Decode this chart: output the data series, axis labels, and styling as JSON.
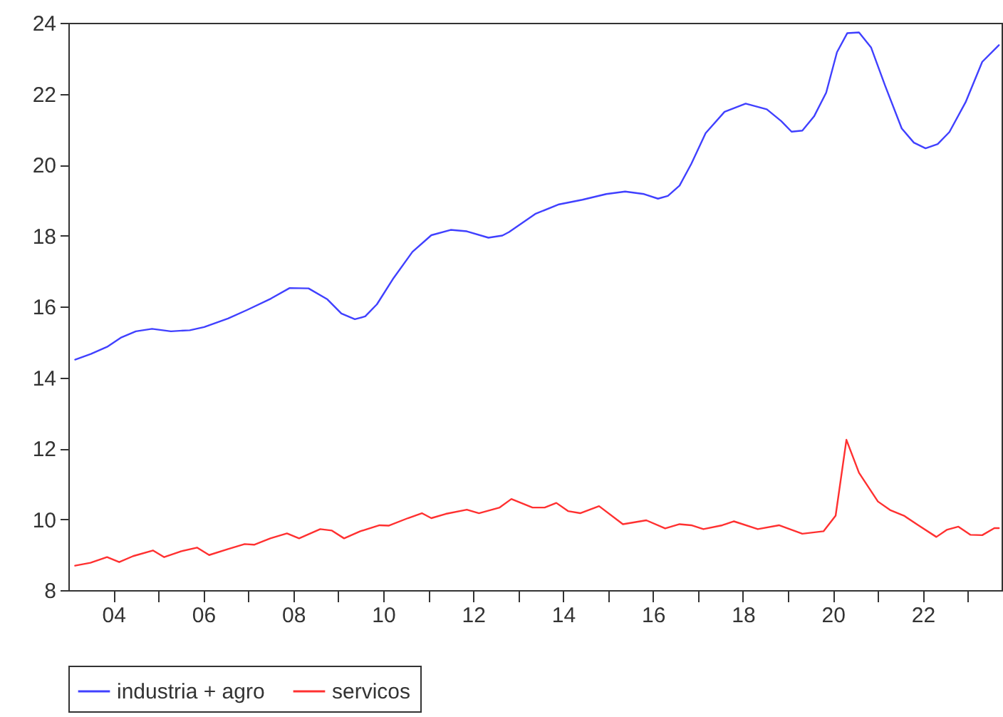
{
  "chart_data": {
    "type": "line",
    "legend": "bottom",
    "marker": "none",
    "line_style": "solid",
    "xlim": [
      2003,
      2023.75
    ],
    "ylim": [
      8,
      24
    ],
    "yticks": [
      8,
      10,
      12,
      14,
      16,
      18,
      20,
      22,
      24
    ],
    "xticks": [
      {
        "value": 2004,
        "label": "04"
      },
      {
        "value": 2005,
        "label": null
      },
      {
        "value": 2006,
        "label": "06"
      },
      {
        "value": 2007,
        "label": null
      },
      {
        "value": 2008,
        "label": "08"
      },
      {
        "value": 2009,
        "label": null
      },
      {
        "value": 2010,
        "label": "10"
      },
      {
        "value": 2011,
        "label": null
      },
      {
        "value": 2012,
        "label": "12"
      },
      {
        "value": 2013,
        "label": null
      },
      {
        "value": 2014,
        "label": "14"
      },
      {
        "value": 2015,
        "label": null
      },
      {
        "value": 2016,
        "label": "16"
      },
      {
        "value": 2017,
        "label": null
      },
      {
        "value": 2018,
        "label": "18"
      },
      {
        "value": 2019,
        "label": null
      },
      {
        "value": 2020,
        "label": "20"
      },
      {
        "value": 2021,
        "label": null
      },
      {
        "value": 2022,
        "label": "22"
      },
      {
        "value": 2023,
        "label": null
      }
    ],
    "series": [
      {
        "name": "industria + agro",
        "color": "#4040ff",
        "x": [
          2003.15,
          2003.5,
          2003.86,
          2004.18,
          2004.5,
          2004.86,
          2005.28,
          2005.7,
          2006.02,
          2006.55,
          2006.97,
          2007.5,
          2007.92,
          2008.34,
          2008.76,
          2009.07,
          2009.37,
          2009.6,
          2009.86,
          2010.23,
          2010.65,
          2011.07,
          2011.5,
          2011.86,
          2012.34,
          2012.65,
          2012.8,
          2013.38,
          2013.91,
          2014.43,
          2014.96,
          2015.38,
          2015.8,
          2016.11,
          2016.33,
          2016.59,
          2016.85,
          2017.17,
          2017.59,
          2018.06,
          2018.53,
          2018.85,
          2019.08,
          2019.32,
          2019.58,
          2019.85,
          2020.09,
          2020.32,
          2020.58,
          2020.85,
          2021.16,
          2021.53,
          2021.8,
          2022.06,
          2022.33,
          2022.59,
          2022.95,
          2023.32,
          2023.69
        ],
        "values": [
          14.5,
          14.66,
          14.86,
          15.13,
          15.3,
          15.37,
          15.3,
          15.33,
          15.42,
          15.66,
          15.9,
          16.22,
          16.52,
          16.51,
          16.2,
          15.8,
          15.64,
          15.72,
          16.06,
          16.8,
          17.54,
          18.01,
          18.16,
          18.12,
          17.94,
          18.0,
          18.1,
          18.61,
          18.88,
          19.01,
          19.17,
          19.24,
          19.17,
          19.04,
          19.12,
          19.41,
          20.02,
          20.89,
          21.49,
          21.72,
          21.56,
          21.23,
          20.93,
          20.96,
          21.36,
          22.03,
          23.17,
          23.71,
          23.73,
          23.3,
          22.23,
          21.02,
          20.62,
          20.46,
          20.58,
          20.92,
          21.76,
          22.9,
          23.37
        ]
      },
      {
        "name": "servicos",
        "color": "#ff3030",
        "x": [
          2003.15,
          2003.49,
          2003.86,
          2004.13,
          2004.44,
          2004.88,
          2005.13,
          2005.49,
          2005.86,
          2006.13,
          2006.55,
          2006.92,
          2007.13,
          2007.49,
          2007.86,
          2008.13,
          2008.6,
          2008.86,
          2009.13,
          2009.49,
          2009.92,
          2010.13,
          2010.55,
          2010.86,
          2011.07,
          2011.39,
          2011.86,
          2012.13,
          2012.59,
          2012.85,
          2013.32,
          2013.59,
          2013.85,
          2014.11,
          2014.38,
          2014.8,
          2015.33,
          2015.85,
          2016.27,
          2016.59,
          2016.85,
          2017.12,
          2017.54,
          2017.8,
          2018.33,
          2018.8,
          2019.32,
          2019.79,
          2020.06,
          2020.3,
          2020.58,
          2021.0,
          2021.27,
          2021.58,
          2021.9,
          2022.3,
          2022.53,
          2022.79,
          2023.06,
          2023.32,
          2023.59,
          2023.69
        ],
        "values": [
          8.69,
          8.77,
          8.93,
          8.79,
          8.96,
          9.12,
          8.93,
          9.09,
          9.2,
          8.99,
          9.16,
          9.3,
          9.28,
          9.46,
          9.6,
          9.46,
          9.72,
          9.68,
          9.46,
          9.66,
          9.83,
          9.82,
          10.03,
          10.17,
          10.03,
          10.15,
          10.27,
          10.17,
          10.33,
          10.57,
          10.33,
          10.33,
          10.46,
          10.23,
          10.17,
          10.37,
          9.86,
          9.97,
          9.74,
          9.86,
          9.83,
          9.72,
          9.83,
          9.94,
          9.72,
          9.83,
          9.59,
          9.66,
          10.1,
          12.24,
          11.31,
          10.5,
          10.26,
          10.1,
          9.83,
          9.5,
          9.7,
          9.79,
          9.56,
          9.55,
          9.75,
          9.75
        ]
      }
    ]
  }
}
